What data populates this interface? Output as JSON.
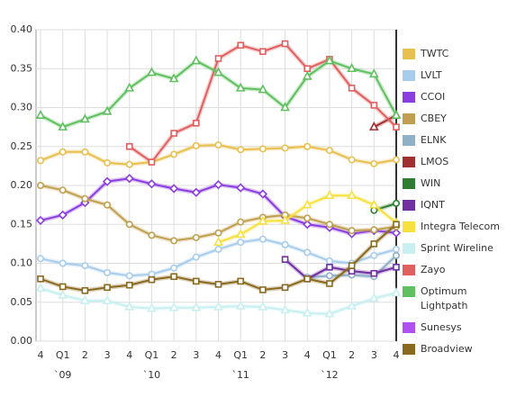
{
  "chart_data": {
    "type": "line",
    "categories": [
      "4",
      "Q1",
      "2",
      "3",
      "4",
      "Q1",
      "2",
      "3",
      "4",
      "Q1",
      "2",
      "3",
      "4",
      "Q1",
      "2",
      "3",
      "4"
    ],
    "x_groups": [
      {
        "label": "`09",
        "index": 1
      },
      {
        "label": "`10",
        "index": 5
      },
      {
        "label": "`11",
        "index": 9
      },
      {
        "label": "`12",
        "index": 13
      }
    ],
    "ylim": [
      0,
      0.4
    ],
    "yticks": [
      {
        "value": 0,
        "label": "0.00"
      },
      {
        "value": 0.05,
        "label": "0.05"
      },
      {
        "value": 0.1,
        "label": "0.10"
      },
      {
        "value": 0.15,
        "label": "0.15"
      },
      {
        "value": 0.2,
        "label": "0.20"
      },
      {
        "value": 0.25,
        "label": "0.25"
      },
      {
        "value": 0.3,
        "label": "0.30"
      },
      {
        "value": 0.35,
        "label": "0.35"
      },
      {
        "value": 0.4,
        "label": "0.40"
      }
    ],
    "grid": true,
    "legend": "right",
    "series": [
      {
        "name": "TWTC",
        "color": "#e8c050",
        "marker": "circle",
        "values": [
          0.232,
          0.243,
          0.243,
          0.229,
          0.227,
          0.23,
          0.24,
          0.251,
          0.252,
          0.246,
          0.247,
          0.248,
          0.25,
          0.245,
          0.233,
          0.228,
          0.233
        ]
      },
      {
        "name": "LVLT",
        "color": "#a8cdec",
        "marker": "circle",
        "values": [
          0.106,
          0.1,
          0.097,
          0.088,
          0.084,
          0.086,
          0.094,
          0.108,
          0.118,
          0.127,
          0.131,
          0.124,
          0.114,
          0.103,
          0.1,
          0.11,
          0.118
        ]
      },
      {
        "name": "CCOI",
        "color": "#8a3ee0",
        "marker": "diamond",
        "values": [
          0.155,
          0.162,
          0.178,
          0.205,
          0.209,
          0.202,
          0.196,
          0.191,
          0.201,
          0.197,
          0.189,
          0.16,
          0.15,
          0.146,
          0.138,
          0.142,
          0.139
        ]
      },
      {
        "name": "CBEY",
        "color": "#c0a050",
        "marker": "circle",
        "values": [
          0.2,
          0.194,
          0.183,
          0.175,
          0.15,
          0.136,
          0.129,
          0.133,
          0.139,
          0.153,
          0.159,
          0.162,
          0.158,
          0.15,
          0.142,
          0.143,
          0.147
        ]
      },
      {
        "name": "ELNK",
        "color": "#90b0c8",
        "marker": "circle",
        "values": [
          null,
          null,
          null,
          null,
          null,
          null,
          null,
          null,
          null,
          null,
          null,
          null,
          0.082,
          0.084,
          0.085,
          0.083,
          0.11
        ]
      },
      {
        "name": "LMOS",
        "color": "#a03030",
        "marker": "triangle",
        "values": [
          null,
          null,
          null,
          null,
          null,
          null,
          null,
          null,
          null,
          null,
          null,
          null,
          null,
          null,
          null,
          0.275,
          0.29
        ]
      },
      {
        "name": "WIN",
        "color": "#2e7d32",
        "marker": "circle",
        "values": [
          null,
          null,
          null,
          null,
          null,
          null,
          null,
          null,
          null,
          null,
          null,
          null,
          null,
          null,
          null,
          0.168,
          0.177
        ]
      },
      {
        "name": "IQNT",
        "color": "#7030a0",
        "marker": "square",
        "values": [
          null,
          null,
          null,
          null,
          null,
          null,
          null,
          null,
          null,
          null,
          null,
          0.105,
          0.08,
          0.095,
          0.09,
          0.087,
          0.095
        ]
      },
      {
        "name": "Integra Telecom",
        "color": "#f8e040",
        "marker": "triangle",
        "values": [
          null,
          null,
          null,
          null,
          null,
          null,
          null,
          null,
          0.127,
          0.137,
          0.154,
          0.155,
          0.175,
          0.187,
          0.187,
          0.175,
          0.152
        ]
      },
      {
        "name": "Sprint Wireline",
        "color": "#c8f0f0",
        "marker": "triangle",
        "values": [
          0.068,
          0.059,
          0.052,
          0.052,
          0.044,
          0.042,
          0.043,
          0.043,
          0.044,
          0.045,
          0.044,
          0.04,
          0.036,
          0.035,
          0.045,
          0.055,
          0.062
        ]
      },
      {
        "name": "Zayo",
        "color": "#e06060",
        "marker": "square",
        "values": [
          null,
          null,
          null,
          null,
          0.25,
          0.23,
          0.267,
          0.28,
          0.363,
          0.38,
          0.372,
          0.382,
          0.35,
          0.362,
          0.325,
          0.303,
          0.275
        ]
      },
      {
        "name": "Optimum Lightpath",
        "color": "#60c060",
        "marker": "triangle",
        "values": [
          0.29,
          0.275,
          0.285,
          0.295,
          0.325,
          0.345,
          0.337,
          0.36,
          0.345,
          0.325,
          0.323,
          0.3,
          0.34,
          0.36,
          0.35,
          0.343,
          0.29
        ]
      },
      {
        "name": "Sunesys",
        "color": "#b050f0",
        "marker": "circle",
        "values": [
          null,
          null,
          null,
          null,
          null,
          null,
          null,
          null,
          null,
          null,
          null,
          null,
          null,
          null,
          null,
          null,
          null
        ]
      },
      {
        "name": "Broadview",
        "color": "#8a6a20",
        "marker": "square",
        "values": [
          0.08,
          0.07,
          0.065,
          0.069,
          0.072,
          0.079,
          0.083,
          0.077,
          0.073,
          0.077,
          0.066,
          0.069,
          0.08,
          0.074,
          0.097,
          0.125,
          0.15
        ]
      }
    ]
  }
}
